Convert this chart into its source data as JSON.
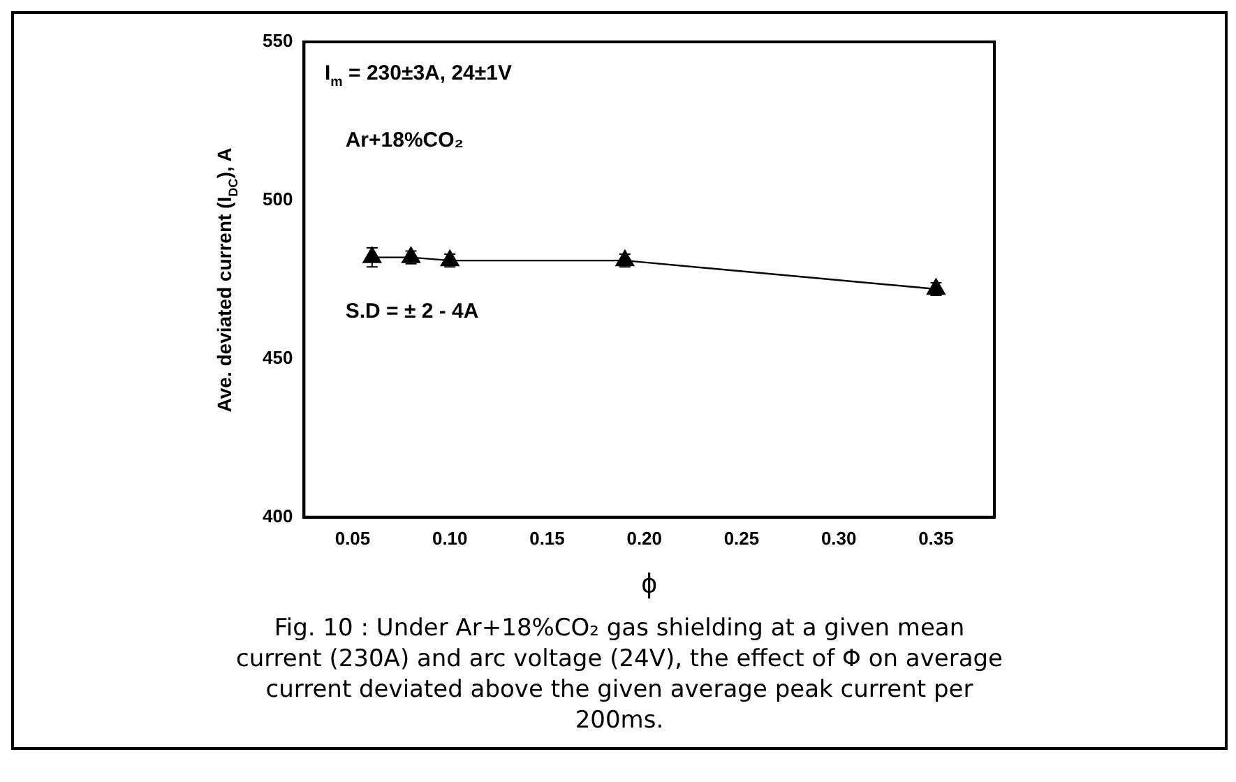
{
  "chart_data": {
    "type": "line",
    "xlabel": "ϕ",
    "ylabel": "Ave. deviated current (I$_{DC}$), A",
    "x": [
      0.06,
      0.08,
      0.1,
      0.19,
      0.35
    ],
    "series": [
      {
        "color": "#000000",
        "values": [
          482,
          482,
          481,
          481,
          472
        ],
        "errors": [
          3,
          2,
          2,
          2,
          2
        ]
      }
    ],
    "xlim": [
      0.025,
      0.38
    ],
    "xticks": [
      {
        "value": 0.05,
        "label": "0.05"
      },
      {
        "value": 0.1,
        "label": "0.10"
      },
      {
        "value": 0.15,
        "label": "0.15"
      },
      {
        "value": 0.2,
        "label": "0.20"
      },
      {
        "value": 0.25,
        "label": "0.25"
      },
      {
        "value": 0.3,
        "label": "0.30"
      },
      {
        "value": 0.35,
        "label": "0.35"
      }
    ],
    "ylim": [
      400,
      550
    ],
    "yticks": [
      400,
      450,
      500,
      550
    ],
    "grid": false,
    "legend": false,
    "marker": "triangle",
    "line_style": "solid",
    "annotations": [
      "I$_{m}$ = 230±3A, 24±1V",
      "Ar+18%CO₂",
      "S.D = ± 2 - 4A",
      "Fig. 10 : Under Ar+18%CO₂ gas shielding at a given mean current (230A) and arc voltage (24V), the effect of Φ on average current deviated above the given average peak current per 200ms."
    ]
  }
}
